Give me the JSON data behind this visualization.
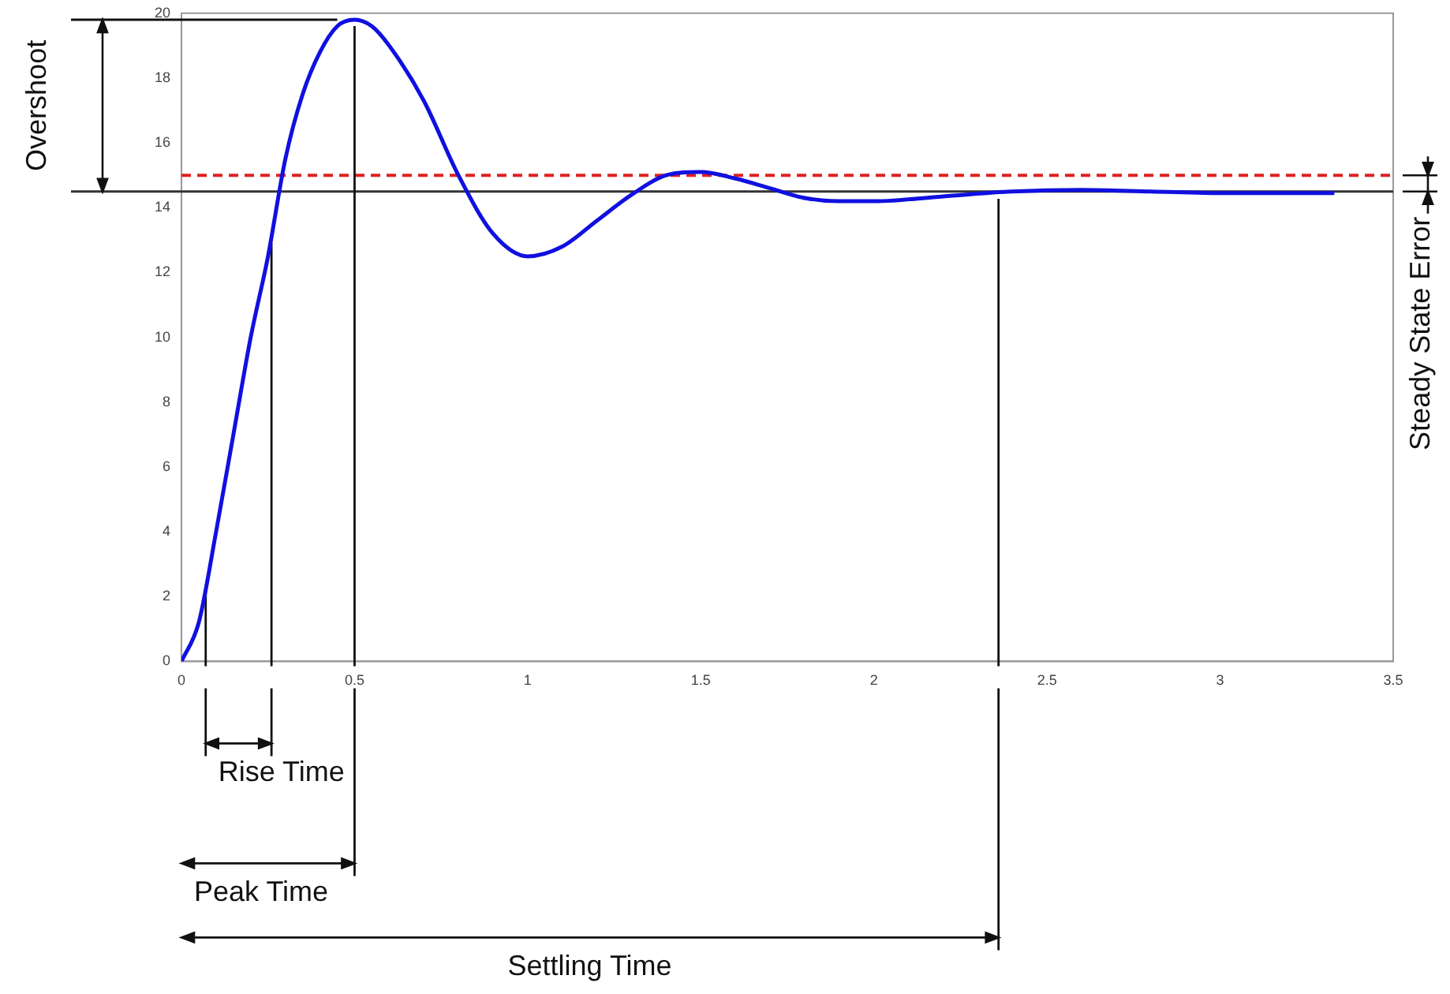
{
  "chart_data": {
    "type": "line",
    "x": [
      0,
      0.05,
      0.1,
      0.15,
      0.2,
      0.25,
      0.3,
      0.35,
      0.4,
      0.45,
      0.5,
      0.55,
      0.6,
      0.7,
      0.8,
      0.9,
      1.0,
      1.1,
      1.2,
      1.3,
      1.4,
      1.5,
      1.6,
      1.7,
      1.8,
      1.9,
      2.0,
      2.2,
      2.4,
      2.6,
      2.8,
      3.0,
      3.33
    ],
    "series": [
      {
        "color": "#1010e0",
        "values": [
          0,
          1.2,
          4,
          7,
          10,
          12.5,
          15.5,
          17.5,
          18.8,
          19.6,
          19.8,
          19.6,
          19.0,
          17.3,
          15,
          13.2,
          12.5,
          12.8,
          13.6,
          14.4,
          15.0,
          15.1,
          14.9,
          14.6,
          14.3,
          14.2,
          14.2,
          14.35,
          14.5,
          14.55,
          14.5,
          14.45,
          14.45
        ]
      }
    ],
    "xlim": [
      0,
      3.5
    ],
    "xticks": [
      0,
      0.5,
      1,
      1.5,
      2,
      2.5,
      3,
      3.5
    ],
    "ylim": [
      0,
      20
    ],
    "yticks": [
      0,
      2,
      4,
      6,
      8,
      10,
      12,
      14,
      16,
      18,
      20
    ],
    "legend": false,
    "marker": "none",
    "line_style": "solid",
    "ref_lines": [
      {
        "axis": "y",
        "value": 15,
        "color": "#e02020",
        "line_style": "dashed"
      },
      {
        "axis": "y",
        "value": 14.5,
        "color": "#333333",
        "line_style": "solid"
      },
      {
        "axis": "y",
        "value": 19.8,
        "color": "#111111",
        "line_style": "solid"
      },
      {
        "axis": "x",
        "value": 0.07,
        "color": "#111111",
        "line_style": "solid"
      },
      {
        "axis": "x",
        "value": 0.26,
        "color": "#111111",
        "line_style": "solid"
      },
      {
        "axis": "x",
        "value": 0.5,
        "color": "#111111",
        "line_style": "solid"
      },
      {
        "axis": "x",
        "value": 2.36,
        "color": "#111111",
        "line_style": "solid"
      }
    ],
    "annotations": [
      "Rise Time",
      "Peak Time",
      "Settling Time",
      "Overshoot",
      "Steady State Error"
    ]
  }
}
